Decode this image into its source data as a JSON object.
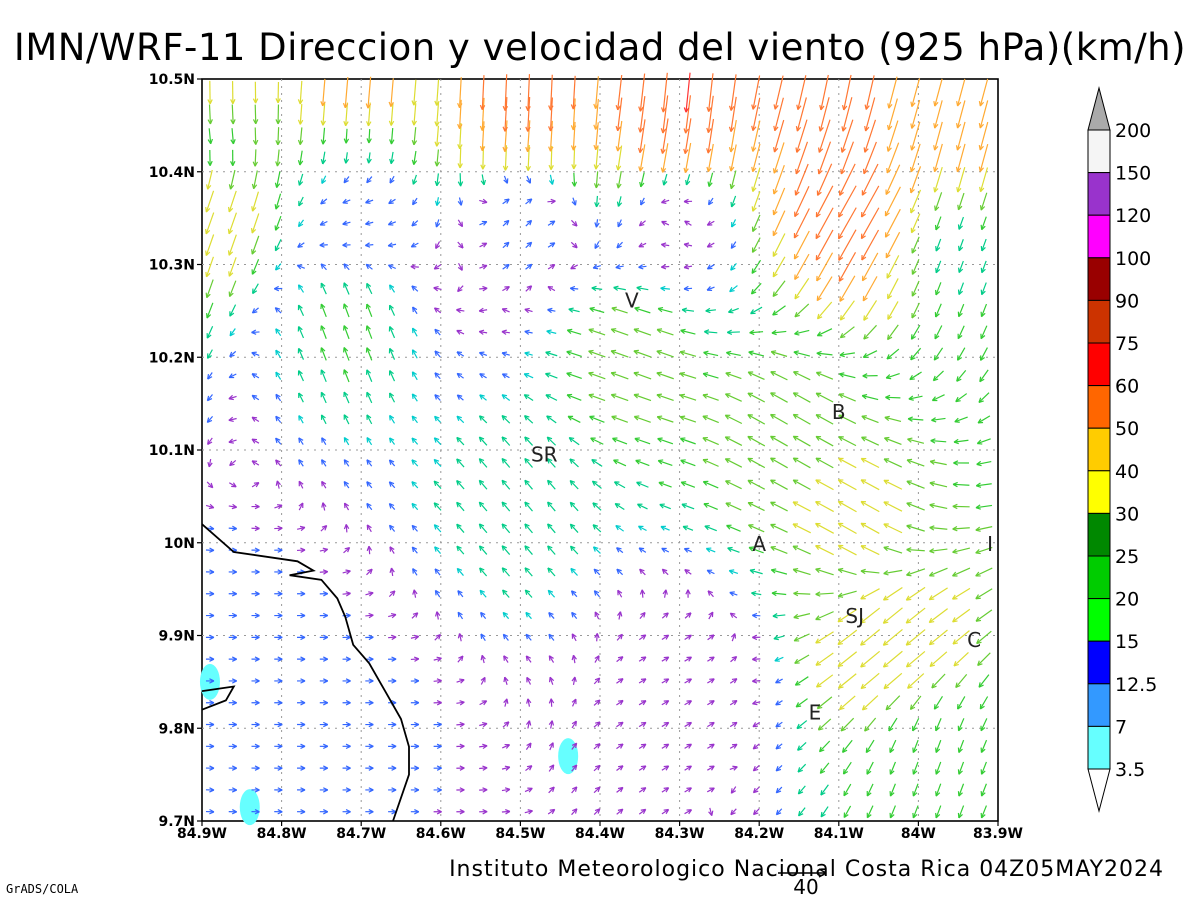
{
  "title": "IMN/WRF-11 Direccion y velocidad del viento (925 hPa)(km/h)",
  "footer": "Instituto Meteorologico Nacional Costa Rica 04Z05MAY2024",
  "credit": "GrADS/COLA",
  "reference_vector": {
    "label": "40",
    "value": 40
  },
  "map": {
    "lon_range": [
      -84.9,
      -83.9
    ],
    "lat_range": [
      9.7,
      10.5
    ],
    "grid": true,
    "lon_ticks": [
      {
        "lon": -84.9,
        "label": "84.9W"
      },
      {
        "lon": -84.8,
        "label": "84.8W"
      },
      {
        "lon": -84.7,
        "label": "84.7W"
      },
      {
        "lon": -84.6,
        "label": "84.6W"
      },
      {
        "lon": -84.5,
        "label": "84.5W"
      },
      {
        "lon": -84.4,
        "label": "84.4W"
      },
      {
        "lon": -84.3,
        "label": "84.3W"
      },
      {
        "lon": -84.2,
        "label": "84.2W"
      },
      {
        "lon": -84.1,
        "label": "84.1W"
      },
      {
        "lon": -84.0,
        "label": "84W"
      },
      {
        "lon": -83.9,
        "label": "83.9W"
      }
    ],
    "lat_ticks": [
      {
        "lat": 10.5,
        "label": "10.5N"
      },
      {
        "lat": 10.4,
        "label": "10.4N"
      },
      {
        "lat": 10.3,
        "label": "10.3N"
      },
      {
        "lat": 10.2,
        "label": "10.2N"
      },
      {
        "lat": 10.1,
        "label": "10.1N"
      },
      {
        "lat": 10.0,
        "label": "10N"
      },
      {
        "lat": 9.9,
        "label": "9.9N"
      },
      {
        "lat": 9.8,
        "label": "9.8N"
      },
      {
        "lat": 9.7,
        "label": "9.7N"
      }
    ],
    "cities": [
      {
        "label": "V",
        "lon": -84.36,
        "lat": 10.262
      },
      {
        "label": "B",
        "lon": -84.1,
        "lat": 10.142
      },
      {
        "label": "SR",
        "lon": -84.47,
        "lat": 10.096
      },
      {
        "label": "A",
        "lon": -84.2,
        "lat": 10.0
      },
      {
        "label": "I",
        "lon": -83.91,
        "lat": 10.0
      },
      {
        "label": "SJ",
        "lon": -84.08,
        "lat": 9.922
      },
      {
        "label": "C",
        "lon": -83.93,
        "lat": 9.896
      },
      {
        "label": "E",
        "lon": -84.13,
        "lat": 9.818
      }
    ],
    "coastline": [
      [
        -84.9,
        10.02
      ],
      [
        -84.86,
        9.99
      ],
      [
        -84.78,
        9.98
      ],
      [
        -84.76,
        9.97
      ],
      [
        -84.79,
        9.965
      ],
      [
        -84.75,
        9.96
      ],
      [
        -84.73,
        9.94
      ],
      [
        -84.72,
        9.92
      ],
      [
        -84.71,
        9.89
      ],
      [
        -84.69,
        9.87
      ],
      [
        -84.67,
        9.84
      ],
      [
        -84.65,
        9.81
      ],
      [
        -84.64,
        9.78
      ],
      [
        -84.64,
        9.75
      ],
      [
        -84.66,
        9.7
      ]
    ],
    "coastline_b": [
      [
        -84.9,
        9.82
      ],
      [
        -84.87,
        9.83
      ],
      [
        -84.86,
        9.845
      ],
      [
        -84.9,
        9.84
      ]
    ]
  },
  "colorbar": {
    "colors": [
      "#66ffff",
      "#3399ff",
      "#0000ff",
      "#00ff00",
      "#00cc00",
      "#008800",
      "#ffff00",
      "#ffcc00",
      "#ff6600",
      "#ff0000",
      "#cc3300",
      "#990000",
      "#ff00ff",
      "#9933cc",
      "#f5f5f5",
      "#aaaaaa"
    ],
    "labels": [
      "3.5",
      "7",
      "12.5",
      "15",
      "20",
      "25",
      "30",
      "40",
      "50",
      "60",
      "75",
      "90",
      "100",
      "120",
      "150",
      "200"
    ],
    "bounds": [
      3.5,
      7,
      12.5,
      15,
      20,
      25,
      30,
      40,
      50,
      60,
      75,
      90,
      100,
      120,
      150,
      200
    ]
  },
  "chart_data": {
    "type": "vector-field",
    "variable": "wind direction and speed",
    "level_hpa": 925,
    "units": "km/h",
    "vectors": [
      {
        "lon": -84.88,
        "lat": 10.48,
        "dir_to_deg": 180,
        "speed": 38
      },
      {
        "lon": -84.7,
        "lat": 10.48,
        "dir_to_deg": 185,
        "speed": 55
      },
      {
        "lon": -84.5,
        "lat": 10.48,
        "dir_to_deg": 182,
        "speed": 58
      },
      {
        "lon": -84.3,
        "lat": 10.48,
        "dir_to_deg": 185,
        "speed": 62
      },
      {
        "lon": -84.1,
        "lat": 10.48,
        "dir_to_deg": 190,
        "speed": 55
      },
      {
        "lon": -83.95,
        "lat": 10.48,
        "dir_to_deg": 195,
        "speed": 42
      },
      {
        "lon": -84.88,
        "lat": 10.44,
        "dir_to_deg": 170,
        "speed": 20
      },
      {
        "lon": -84.7,
        "lat": 10.44,
        "dir_to_deg": 180,
        "speed": 14
      },
      {
        "lon": -84.5,
        "lat": 10.44,
        "dir_to_deg": 185,
        "speed": 48
      },
      {
        "lon": -84.3,
        "lat": 10.44,
        "dir_to_deg": 190,
        "speed": 55
      },
      {
        "lon": -84.1,
        "lat": 10.44,
        "dir_to_deg": 200,
        "speed": 52
      },
      {
        "lon": -83.95,
        "lat": 10.44,
        "dir_to_deg": 195,
        "speed": 45
      },
      {
        "lon": -84.88,
        "lat": 10.36,
        "dir_to_deg": 200,
        "speed": 35
      },
      {
        "lon": -84.7,
        "lat": 10.36,
        "dir_to_deg": 260,
        "speed": 10
      },
      {
        "lon": -84.5,
        "lat": 10.36,
        "dir_to_deg": 40,
        "speed": 14
      },
      {
        "lon": -84.3,
        "lat": 10.36,
        "dir_to_deg": 330,
        "speed": 5
      },
      {
        "lon": -84.08,
        "lat": 10.36,
        "dir_to_deg": 210,
        "speed": 55
      },
      {
        "lon": -83.95,
        "lat": 10.32,
        "dir_to_deg": 200,
        "speed": 18
      },
      {
        "lon": -84.72,
        "lat": 10.24,
        "dir_to_deg": 340,
        "speed": 22
      },
      {
        "lon": -84.36,
        "lat": 10.2,
        "dir_to_deg": 290,
        "speed": 28
      },
      {
        "lon": -84.16,
        "lat": 10.12,
        "dir_to_deg": 300,
        "speed": 30
      },
      {
        "lon": -84.5,
        "lat": 10.05,
        "dir_to_deg": 320,
        "speed": 18
      },
      {
        "lon": -84.08,
        "lat": 10.02,
        "dir_to_deg": 300,
        "speed": 32
      },
      {
        "lon": -84.04,
        "lat": 9.9,
        "dir_to_deg": 230,
        "speed": 38
      },
      {
        "lon": -83.98,
        "lat": 9.76,
        "dir_to_deg": 200,
        "speed": 20
      },
      {
        "lon": -84.86,
        "lat": 9.88,
        "dir_to_deg": 90,
        "speed": 10
      },
      {
        "lon": -84.7,
        "lat": 9.8,
        "dir_to_deg": 90,
        "speed": 8
      },
      {
        "lon": -84.3,
        "lat": 9.85,
        "dir_to_deg": 60,
        "speed": 5
      }
    ],
    "shaded_regions": [
      {
        "lon": -84.89,
        "lat": 9.85,
        "speed_class": "3.5-7"
      },
      {
        "lon": -84.84,
        "lat": 9.715,
        "speed_class": "3.5-7"
      },
      {
        "lon": -84.44,
        "lat": 9.77,
        "speed_class": "3.5-7"
      }
    ]
  }
}
